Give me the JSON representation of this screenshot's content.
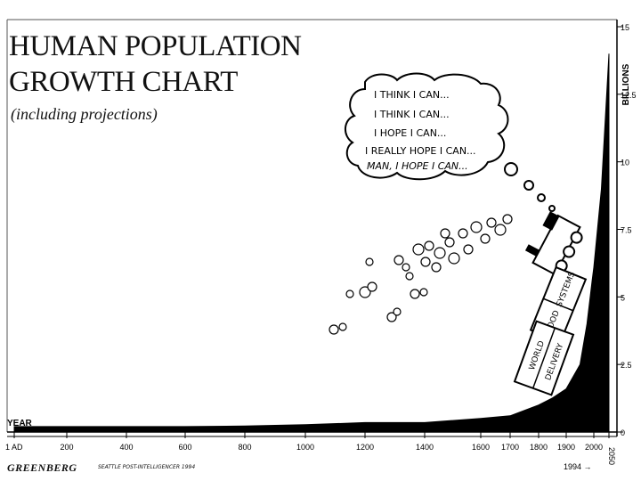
{
  "title_line1": "HUMAN POPULATION",
  "title_line2": "GROWTH CHART",
  "subtitle": "(including projections)",
  "thought_lines": [
    "I THINK I CAN...",
    "I THINK I CAN...",
    "I HOPE I CAN...",
    "I REALLY HOPE I CAN...",
    "MAN, I HOPE I CAN..."
  ],
  "train_car_labels": [
    "FOOD",
    "SYSTEMS",
    "WORLD",
    "DELIVERY"
  ],
  "credit": "GREENBERG",
  "credit_sub": "SEATTLE POST-INTELLIGENCER 1994",
  "marker_1994": "1994 →",
  "chart_data": {
    "type": "area",
    "title": "HUMAN POPULATION GROWTH CHART",
    "subtitle": "(including projections)",
    "xlabel": "YEAR",
    "ylabel": "BILLIONS",
    "xlim": [
      1,
      2050
    ],
    "ylim": [
      0,
      15
    ],
    "x_tick_labels": [
      "1 AD",
      "200",
      "400",
      "600",
      "800",
      "1000",
      "1200",
      "1400",
      "1600",
      "1700",
      "1800",
      "1900",
      "2000",
      "2050"
    ],
    "y_ticks": [
      0,
      2.5,
      5,
      7.5,
      10,
      12.5,
      15
    ],
    "y_tick_labels": [
      "0",
      "2.5",
      "5",
      "7.5",
      "10",
      "12.5",
      "15"
    ],
    "x_tick_values": [
      1,
      200,
      400,
      600,
      800,
      1000,
      1200,
      1400,
      1600,
      1700,
      1800,
      1900,
      2000,
      2050
    ],
    "series": [
      {
        "x": [
          1,
          200,
          400,
          600,
          800,
          1000,
          1200,
          1400,
          1600,
          1700,
          1800,
          1850,
          1900,
          1950,
          1975,
          1994,
          2000,
          2025,
          2050
        ],
        "y": [
          0.2,
          0.2,
          0.2,
          0.2,
          0.22,
          0.27,
          0.35,
          0.35,
          0.5,
          0.6,
          1.0,
          1.26,
          1.6,
          2.5,
          4.0,
          5.6,
          6.1,
          9.0,
          14.0
        ]
      }
    ],
    "grid": false,
    "legend": "none"
  }
}
